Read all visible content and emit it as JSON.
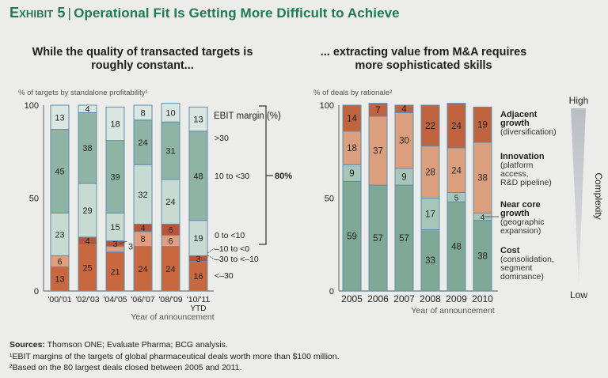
{
  "header": {
    "exhibit": "Exhibit 5",
    "title": "Operational Fit Is Getting More Difficult to Achieve"
  },
  "footnotes": {
    "sources_label": "Sources:",
    "sources_text": "Thomson ONE; Evaluate Pharma; BCG analysis.",
    "note1": "¹EBIT margins of the targets of global pharmaceutical deals worth more than $100 million.",
    "note2": "²Based on the 80 largest deals closed between 2005 and 2011."
  },
  "colors": {
    "gt30": "#d9e6e1",
    "10to30": "#8fb3a4",
    "0to10": "#c7dbd3",
    "neg10to0": "#b9543a",
    "neg30to10": "#dd9f7f",
    "ltneg30": "#c9673f",
    "cost": "#7fa895",
    "near_core": "#a7c6b9",
    "innovation": "#dc9f7d",
    "adjacent": "#c0633f",
    "bar_stroke": "#5d8fb0"
  },
  "chart_data": [
    {
      "type": "bar",
      "stacked": true,
      "title": "While the quality of transacted targets is roughly constant...",
      "ylabel": "% of targets by standalone profitability¹",
      "xlabel": "Year of announcement",
      "ylim": [
        0,
        100
      ],
      "yticks": [
        "0",
        "50",
        "100"
      ],
      "categories": [
        "'00/'01",
        "'02/'03",
        "'04/'05",
        "'06/'07",
        "'08/'09",
        "'10/'11"
      ],
      "category_sublabels": [
        "",
        "",
        "",
        "",
        "",
        "YTD"
      ],
      "legend_title": "EBIT margin (%)",
      "series": [
        {
          "name": "<–30",
          "key": "ltneg30",
          "values": [
            13,
            25,
            21,
            24,
            24,
            16
          ]
        },
        {
          "name": "–30 to <–10",
          "key": "neg30to10",
          "values": [
            6,
            0,
            3,
            8,
            6,
            0
          ]
        },
        {
          "name": "–10 to <0",
          "key": "neg10to0",
          "values": [
            0,
            4,
            3,
            4,
            6,
            3
          ]
        },
        {
          "name": "0 to <10",
          "key": "0to10",
          "values": [
            23,
            29,
            15,
            32,
            24,
            19
          ]
        },
        {
          "name": "10 to <30",
          "key": "10to30",
          "values": [
            45,
            38,
            39,
            24,
            31,
            48
          ]
        },
        {
          "name": ">30",
          "key": "gt30",
          "values": [
            13,
            4,
            18,
            8,
            10,
            13
          ]
        }
      ],
      "annotations": {
        "bracket_label": "80%",
        "bracket_covers": [
          ">30",
          "10 to <30",
          "0 to <10"
        ]
      }
    },
    {
      "type": "bar",
      "stacked": true,
      "title": "... extracting value from M&A requires more sophisticated skills",
      "ylabel": "% of deals by rationale²",
      "xlabel": "Year of announcement",
      "ylim": [
        0,
        100
      ],
      "yticks": [
        "0",
        "50",
        "100"
      ],
      "categories": [
        "2005",
        "2006",
        "2007",
        "2008",
        "2009",
        "2010"
      ],
      "series": [
        {
          "name": "Cost",
          "sub": "(consolidation, segment dominance)",
          "key": "cost",
          "values": [
            59,
            57,
            57,
            33,
            48,
            38
          ]
        },
        {
          "name": "Near core growth",
          "sub": "(geographic expansion)",
          "key": "near_core",
          "values": [
            9,
            0,
            9,
            17,
            5,
            4
          ]
        },
        {
          "name": "Innovation",
          "sub": "(platform access, R&D pipeline)",
          "key": "innovation",
          "values": [
            18,
            37,
            30,
            28,
            24,
            38
          ]
        },
        {
          "name": "Adjacent growth",
          "sub": "(diversification)",
          "key": "adjacent",
          "values": [
            14,
            7,
            4,
            22,
            24,
            19
          ]
        }
      ],
      "complexity": {
        "label": "Complexity",
        "high": "High",
        "low": "Low"
      }
    }
  ]
}
